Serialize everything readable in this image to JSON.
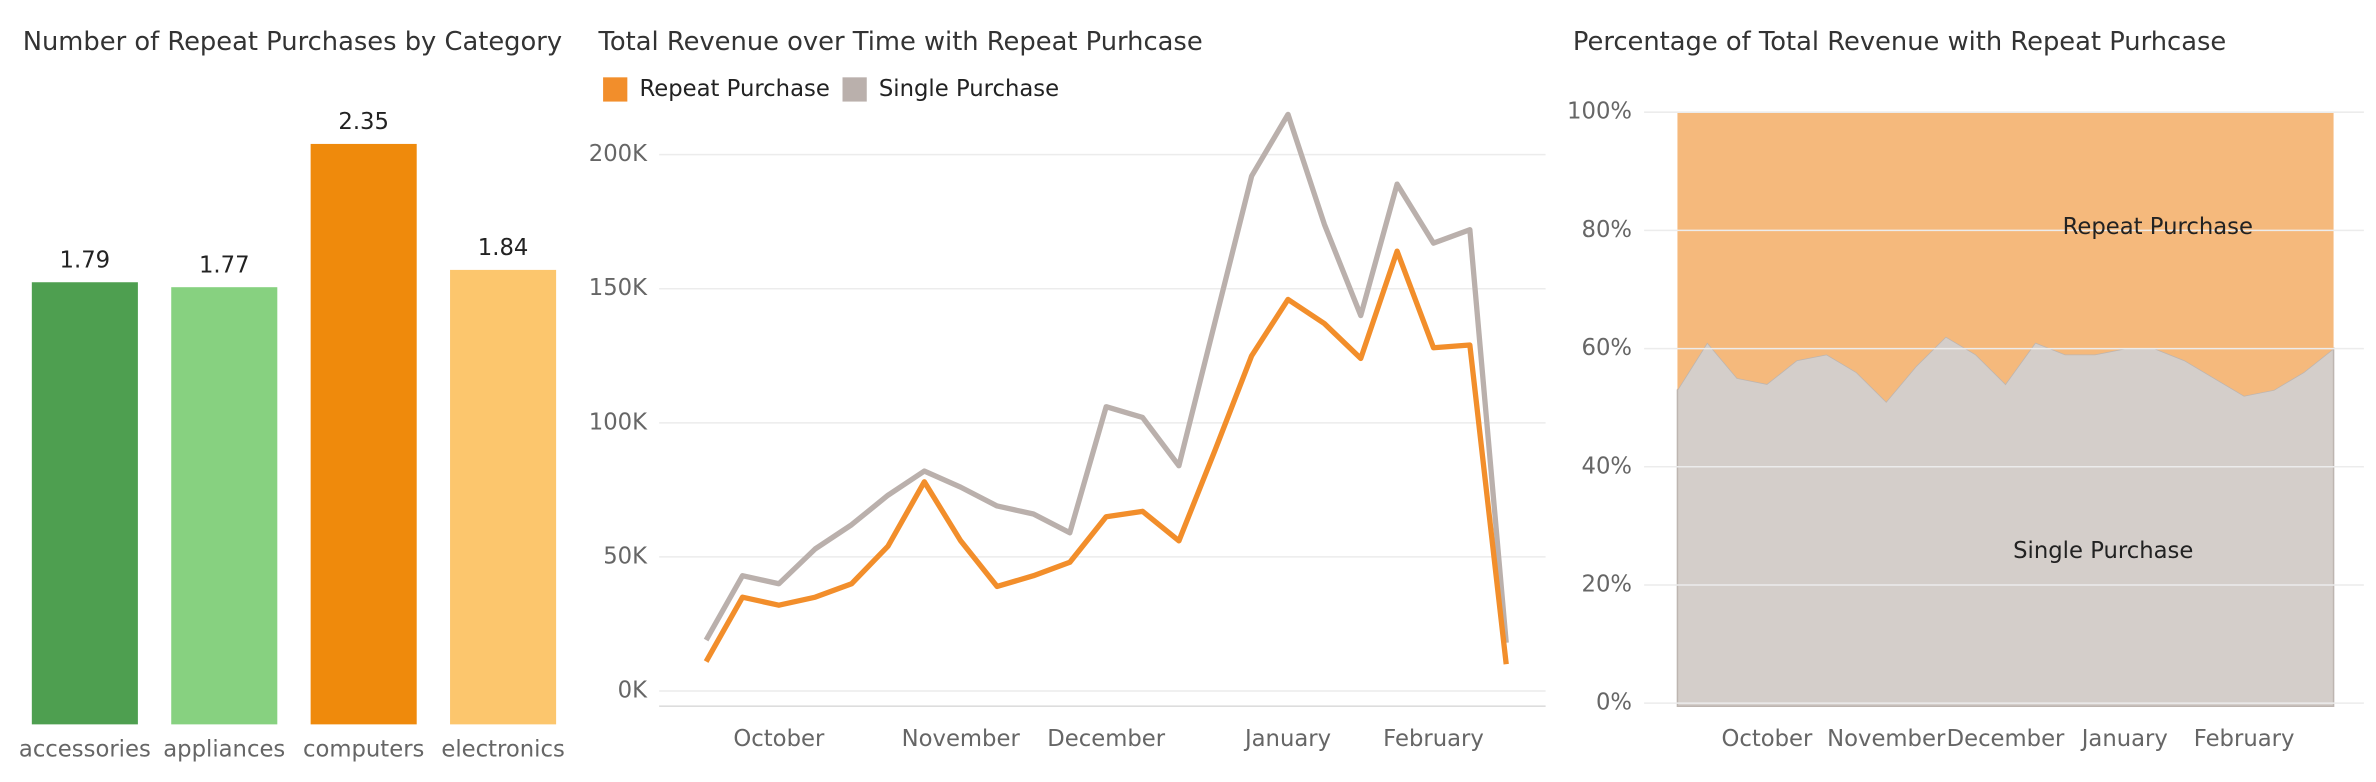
{
  "chart_data": [
    {
      "type": "bar",
      "title": "Number of Repeat Purchases by Category",
      "categories": [
        "accessories",
        "appliances",
        "computers",
        "electronics"
      ],
      "values": [
        1.79,
        1.77,
        2.35,
        1.84
      ],
      "colors": [
        "#4e9f50",
        "#87d180",
        "#ef8a0c",
        "#fcc66d"
      ]
    },
    {
      "type": "line",
      "title": "Total Revenue over Time with Repeat Purhcase",
      "categories": [
        null,
        null,
        "October",
        null,
        null,
        null,
        null,
        "November",
        null,
        null,
        null,
        "December",
        null,
        null,
        null,
        null,
        "January",
        null,
        null,
        null,
        "February",
        null,
        null
      ],
      "series": [
        {
          "name": "Repeat Purchase",
          "color": "#f28e2b",
          "values": [
            11000,
            35000,
            32000,
            35000,
            40000,
            54000,
            78000,
            56000,
            39000,
            43000,
            48000,
            65000,
            67000,
            56000,
            90000,
            125000,
            146000,
            137000,
            124000,
            164000,
            128000,
            129000,
            10000
          ]
        },
        {
          "name": "Single Purchase",
          "color": "#bab0ac",
          "values": [
            19000,
            43000,
            40000,
            53000,
            62000,
            73000,
            82000,
            76000,
            69000,
            66000,
            59000,
            106000,
            102000,
            84000,
            138000,
            192000,
            215000,
            174000,
            140000,
            189000,
            167000,
            172000,
            18000
          ]
        }
      ],
      "ylim": [
        0,
        220000
      ],
      "yticks": [
        {
          "value": 0,
          "label": "0K"
        },
        {
          "value": 50000,
          "label": "50K"
        },
        {
          "value": 100000,
          "label": "100K"
        },
        {
          "value": 150000,
          "label": "150K"
        },
        {
          "value": 200000,
          "label": "200K"
        }
      ],
      "grid": true
    },
    {
      "type": "area",
      "title": "Percentage of Total Revenue with Repeat Purhcase",
      "categories": [
        null,
        null,
        null,
        "October",
        null,
        null,
        null,
        "November",
        null,
        null,
        null,
        "December",
        null,
        null,
        null,
        "January",
        null,
        null,
        null,
        "February",
        null,
        null,
        null
      ],
      "series": [
        {
          "name": "Single Purchase",
          "color": "#d4ceca",
          "values": [
            53,
            61,
            55,
            54,
            58,
            59,
            56,
            51,
            57,
            62,
            59,
            54,
            61,
            59,
            59,
            60,
            60,
            58,
            55,
            52,
            53,
            56,
            60
          ]
        },
        {
          "name": "Repeat Purchase",
          "color": "#f5b97c",
          "values": [
            47,
            39,
            45,
            46,
            42,
            41,
            44,
            49,
            43,
            38,
            41,
            46,
            39,
            41,
            41,
            40,
            40,
            42,
            45,
            48,
            47,
            44,
            40
          ]
        }
      ],
      "ylim": [
        0,
        100
      ],
      "yticks": [
        {
          "value": 0,
          "label": "0%"
        },
        {
          "value": 20,
          "label": "20%"
        },
        {
          "value": 40,
          "label": "40%"
        },
        {
          "value": 60,
          "label": "60%"
        },
        {
          "value": 80,
          "label": "80%"
        },
        {
          "value": 100,
          "label": "100%"
        }
      ],
      "grid": true
    }
  ]
}
